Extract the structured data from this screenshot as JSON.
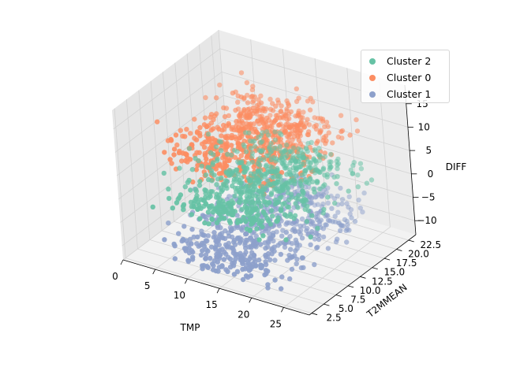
{
  "chart_data": {
    "type": "scatter",
    "projection": "3d",
    "xlabel": "TMP",
    "ylabel": "T2MMEAN",
    "zlabel": "DIFF",
    "x_ticks": [
      "0",
      "5",
      "10",
      "15",
      "20",
      "25"
    ],
    "y_ticks": [
      "2.5",
      "5.0",
      "7.5",
      "10.0",
      "12.5",
      "15.0",
      "17.5",
      "20.0",
      "22.5"
    ],
    "z_ticks": [
      "−10",
      "−5",
      "0",
      "5",
      "10",
      "15"
    ],
    "xlim": [
      0,
      29
    ],
    "ylim": [
      2,
      24
    ],
    "zlim": [
      -13,
      19
    ],
    "grid": true,
    "legend_position": "top-right",
    "series": [
      {
        "name": "Cluster 2",
        "color": "#66c2a5",
        "z_range": [
          -3,
          5
        ],
        "y_range": [
          3,
          22
        ]
      },
      {
        "name": "Cluster 0",
        "color": "#fc8d62",
        "z_range": [
          5,
          18
        ],
        "y_range": [
          3,
          20
        ]
      },
      {
        "name": "Cluster 1",
        "color": "#8da0cb",
        "z_range": [
          -13,
          -3
        ],
        "y_range": [
          2,
          23
        ]
      }
    ]
  }
}
